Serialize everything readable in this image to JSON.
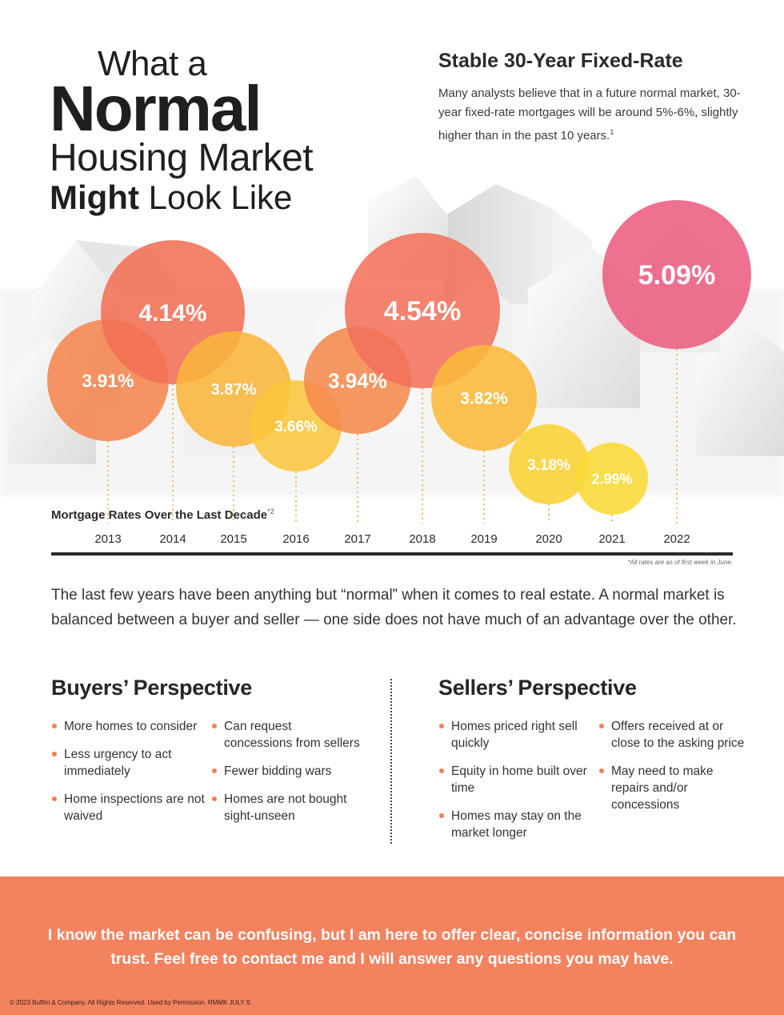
{
  "title": {
    "line1": "What a",
    "line2": "Normal",
    "line3": "Housing Market",
    "line4_bold": "Might",
    "line4_light": "Look Like"
  },
  "side": {
    "heading": "Stable 30-Year Fixed-Rate",
    "body": "Many analysts believe that in a future normal market, 30-year fixed-rate mortgages will be around 5%-6%, slightly higher than in the past 10 years.",
    "footnote_mark": "1"
  },
  "chart_data": {
    "type": "bubble",
    "title": "Mortgage Rates Over the Last Decade",
    "title_mark": "*2",
    "note": "*All rates are as of first week in June.",
    "categories": [
      "2013",
      "2014",
      "2015",
      "2016",
      "2017",
      "2018",
      "2019",
      "2020",
      "2021",
      "2022"
    ],
    "values": [
      3.91,
      4.14,
      3.87,
      3.66,
      3.94,
      4.54,
      3.82,
      3.18,
      2.99,
      5.09
    ],
    "labels": [
      "3.91%",
      "4.14%",
      "3.87%",
      "3.66%",
      "3.94%",
      "4.54%",
      "3.82%",
      "3.18%",
      "2.99%",
      "5.09%"
    ],
    "colors": [
      "#f5854f",
      "#f26f55",
      "#f9b53a",
      "#fbc63c",
      "#f58a4c",
      "#f2725b",
      "#fbb93a",
      "#fad132",
      "#fbd936",
      "#ec5f81"
    ],
    "guide_color": "#f0a020",
    "axis_color": "#2b2b2b"
  },
  "intro": "The last few years have been anything but “normal” when it comes to real estate. A normal market is balanced between a buyer and seller — one side does not have much of an advantage over the other.",
  "buyers": {
    "heading": "Buyers’ Perspective",
    "col_a": [
      "More homes to consider",
      "Less urgency to act immediately",
      "Home inspections are not waived"
    ],
    "col_b": [
      "Can request concessions from sellers",
      "Fewer bidding wars",
      "Homes are not bought sight-unseen"
    ]
  },
  "sellers": {
    "heading": "Sellers’ Perspective",
    "col_a": [
      "Homes priced right sell quickly",
      "Equity in home built over time",
      "Homes may stay on the market longer"
    ],
    "col_b": [
      "Offers received at or close to the asking price",
      "May need to make repairs and/or concessions"
    ]
  },
  "footer": {
    "message": "I know the market can be confusing, but I am here to offer clear, concise information you can trust. Feel free to contact me and I will answer any questions you may have.",
    "copyright": "© 2023 Buffini & Company. All Rights Reserved. Used by Permission. RMMK JULY S",
    "background": "#f3825f"
  }
}
